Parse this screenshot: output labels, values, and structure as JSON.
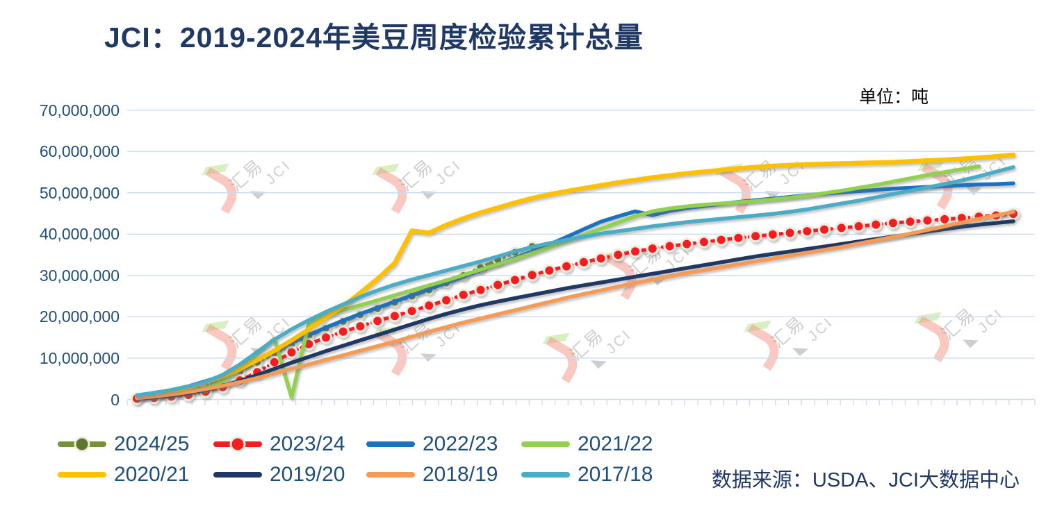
{
  "title": "JCI：2019-2024年美豆周度检验累计总量",
  "unit_label": "单位：吨",
  "source_label": "数据来源：USDA、JCI大数据中心",
  "watermark": {
    "brand_cn": "汇易",
    "brand_en": "JCI",
    "triangle_glyph": "◣"
  },
  "colors": {
    "title_text": "#1F3864",
    "legend_text": "#1F4E79",
    "axis_label_text": "#1F4E79",
    "gridline": "#C9DCF0"
  },
  "chart_data": {
    "type": "line",
    "title": "JCI：2019-2024年美豆周度检验累计总量",
    "unit": "吨",
    "x_axis": {
      "meaning": "week of marketing year",
      "tick_labels_shown": false,
      "minor_tick_count": 70
    },
    "y_axis": {
      "min": 0,
      "max": 70000000,
      "step": 10000000,
      "tick_labels": [
        "70,000,000",
        "60,000,000",
        "50,000,000",
        "40,000,000",
        "30,000,000",
        "20,000,000",
        "10,000,000",
        "0"
      ]
    },
    "legend_position": "bottom",
    "grid": "horizontal",
    "series": [
      {
        "name": "2024/25",
        "color": "#77903A",
        "style": "dash-marker",
        "marker": true,
        "marker_fill": "#5D7731",
        "marker_ring": "#E9E9DC",
        "values_million_tons": [
          0.4,
          0.9,
          1.5,
          2.3,
          3.3,
          4.8,
          6.8,
          9.0,
          11.2,
          13.4,
          15.4,
          17.2,
          18.9,
          20.5,
          22.0,
          23.5,
          25.0,
          26.5,
          28.2,
          30.0,
          31.9,
          33.8,
          35.6,
          37.0
        ]
      },
      {
        "name": "2023/24",
        "color": "#F81C1E",
        "style": "dash-marker",
        "marker": true,
        "marker_fill": "#F81C1E",
        "marker_ring": "#EDEDE1",
        "values_million_tons": [
          0.2,
          0.4,
          0.7,
          1.1,
          1.9,
          3.0,
          4.6,
          6.6,
          9.0,
          11.4,
          13.4,
          15.0,
          16.4,
          17.7,
          19.0,
          20.2,
          21.4,
          22.7,
          24.0,
          25.3,
          26.5,
          27.7,
          28.9,
          30.1,
          31.2,
          32.2,
          33.2,
          34.1,
          35.0,
          35.8,
          36.5,
          37.1,
          37.6,
          38.1,
          38.6,
          39.1,
          39.5,
          39.9,
          40.3,
          40.7,
          41.1,
          41.5,
          41.9,
          42.3,
          42.7,
          43.0,
          43.3,
          43.6,
          43.9,
          44.2,
          44.5,
          44.9
        ]
      },
      {
        "name": "2022/23",
        "color": "#1B72C0",
        "style": "solid",
        "marker": false,
        "values_million_tons": [
          0.8,
          1.4,
          2.2,
          3.2,
          4.4,
          5.8,
          7.6,
          9.6,
          11.7,
          13.7,
          15.6,
          17.4,
          19.1,
          20.7,
          22.2,
          23.7,
          25.2,
          26.7,
          28.2,
          29.7,
          31.2,
          32.7,
          34.2,
          35.8,
          37.5,
          39.3,
          41.2,
          43.0,
          44.3,
          45.5,
          44.6,
          45.6,
          46.3,
          46.8,
          47.3,
          47.8,
          48.2,
          48.6,
          49.0,
          49.4,
          49.8,
          50.1,
          50.4,
          50.7,
          51.0,
          51.2,
          51.4,
          51.6,
          51.8,
          52.0,
          52.1,
          52.3
        ]
      },
      {
        "name": "2021/22",
        "color": "#92D050",
        "style": "solid",
        "marker": false,
        "values_million_tons": [
          0.4,
          0.8,
          1.3,
          1.9,
          2.7,
          4.4,
          7.2,
          11.2,
          14.7,
          0.5,
          18.5,
          20.3,
          21.6,
          22.8,
          24.0,
          25.2,
          26.4,
          27.6,
          28.8,
          30.1,
          31.4,
          32.7,
          34.0,
          35.4,
          36.8,
          38.3,
          39.8,
          41.3,
          42.8,
          44.3,
          45.5,
          46.2,
          46.7,
          47.1,
          47.4,
          47.7,
          48.0,
          48.4,
          48.8,
          49.3,
          49.9,
          50.5,
          51.2,
          51.9,
          52.7,
          53.5,
          54.3,
          55.0,
          55.7,
          56.4
        ]
      },
      {
        "name": "2020/21",
        "color": "#FFC000",
        "style": "solid",
        "marker": false,
        "values_million_tons": [
          0.5,
          1.1,
          1.9,
          2.9,
          4.1,
          5.6,
          7.4,
          9.5,
          11.8,
          14.3,
          17.0,
          19.8,
          22.6,
          25.8,
          29.2,
          33.0,
          40.8,
          40.3,
          42.2,
          43.8,
          45.2,
          46.4,
          47.6,
          48.7,
          49.6,
          50.4,
          51.1,
          51.8,
          52.5,
          53.1,
          53.7,
          54.2,
          54.7,
          55.1,
          55.5,
          55.9,
          56.2,
          56.5,
          56.7,
          56.9,
          57.0,
          57.1,
          57.2,
          57.3,
          57.4,
          57.6,
          57.8,
          58.0,
          58.2,
          58.5,
          58.8,
          59.2
        ]
      },
      {
        "name": "2019/20",
        "color": "#1F3864",
        "style": "solid",
        "marker": false,
        "values_million_tons": [
          0.2,
          0.5,
          0.9,
          1.5,
          2.3,
          3.3,
          4.5,
          5.9,
          7.4,
          8.9,
          10.3,
          11.7,
          13.0,
          14.3,
          15.6,
          16.9,
          18.2,
          19.5,
          20.7,
          21.8,
          22.8,
          23.7,
          24.5,
          25.3,
          26.1,
          26.9,
          27.6,
          28.3,
          29.0,
          29.7,
          30.4,
          31.1,
          31.8,
          32.5,
          33.2,
          33.9,
          34.6,
          35.2,
          35.8,
          36.4,
          37.0,
          37.6,
          38.2,
          38.8,
          39.4,
          40.0,
          40.6,
          41.2,
          41.8,
          42.3,
          42.7,
          43.1
        ]
      },
      {
        "name": "2018/19",
        "color": "#F59B56",
        "style": "solid",
        "marker": false,
        "values_million_tons": [
          0.3,
          0.7,
          1.2,
          1.8,
          2.5,
          3.3,
          4.2,
          5.2,
          6.3,
          7.4,
          8.5,
          9.6,
          10.7,
          11.8,
          12.9,
          14.0,
          15.2,
          16.4,
          17.5,
          18.6,
          19.6,
          20.6,
          21.6,
          22.6,
          23.6,
          24.6,
          25.5,
          26.4,
          27.3,
          28.2,
          29.0,
          29.8,
          30.6,
          31.3,
          32.0,
          32.7,
          33.4,
          34.1,
          34.8,
          35.5,
          36.2,
          36.9,
          37.7,
          38.5,
          39.3,
          40.1,
          41.0,
          41.9,
          42.8,
          43.7,
          44.5,
          45.4
        ]
      },
      {
        "name": "2017/18",
        "color": "#4BACC6",
        "style": "solid",
        "marker": false,
        "values_million_tons": [
          1.0,
          1.6,
          2.3,
          3.2,
          4.2,
          6.0,
          8.5,
          11.5,
          14.5,
          17.0,
          19.2,
          21.2,
          23.0,
          24.8,
          26.4,
          27.8,
          29.0,
          30.1,
          31.2,
          32.3,
          33.4,
          34.6,
          35.8,
          36.9,
          37.8,
          38.6,
          39.4,
          40.1,
          40.7,
          41.3,
          41.9,
          42.4,
          42.9,
          43.3,
          43.7,
          44.1,
          44.5,
          44.9,
          45.4,
          46.0,
          46.7,
          47.4,
          48.1,
          48.9,
          49.7,
          50.5,
          51.3,
          52.1,
          53.0,
          54.0,
          55.1,
          56.2
        ]
      }
    ]
  }
}
